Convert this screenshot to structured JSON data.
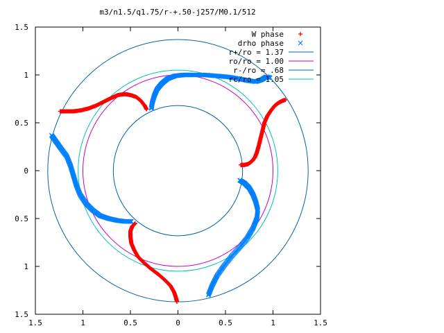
{
  "chart_data": {
    "type": "scatter",
    "title": "m3/n1.5/q1.75/r-+.50-j257/M0.1/512",
    "xlim": [
      -1.5,
      1.5
    ],
    "ylim": [
      -1.5,
      1.5
    ],
    "x_ticks": [
      {
        "value": -1.5,
        "label": "1.5"
      },
      {
        "value": -1.0,
        "label": "1"
      },
      {
        "value": -0.5,
        "label": "0.5"
      },
      {
        "value": 0.0,
        "label": "0"
      },
      {
        "value": 0.5,
        "label": "0.5"
      },
      {
        "value": 1.0,
        "label": "1"
      },
      {
        "value": 1.5,
        "label": "1.5"
      }
    ],
    "y_ticks": [
      {
        "value": 1.5,
        "label": "1.5"
      },
      {
        "value": 1.0,
        "label": "1"
      },
      {
        "value": 0.5,
        "label": "0.5"
      },
      {
        "value": 0.0,
        "label": "0"
      },
      {
        "value": -0.5,
        "label": "0.5"
      },
      {
        "value": -1.0,
        "label": "1"
      },
      {
        "value": -1.5,
        "label": "1.5"
      }
    ],
    "grid": false,
    "legend_position": "top-right",
    "series": [
      {
        "name": "W phase",
        "marker": "+",
        "color": "#ff0000",
        "arms": [
          [
            [
              0.66,
              0.06
            ],
            [
              0.7,
              0.06
            ],
            [
              0.74,
              0.07
            ],
            [
              0.78,
              0.1
            ],
            [
              0.81,
              0.14
            ],
            [
              0.83,
              0.19
            ],
            [
              0.85,
              0.26
            ],
            [
              0.87,
              0.34
            ],
            [
              0.89,
              0.42
            ],
            [
              0.91,
              0.5
            ],
            [
              0.94,
              0.57
            ],
            [
              0.98,
              0.63
            ],
            [
              1.02,
              0.68
            ],
            [
              1.06,
              0.71
            ],
            [
              1.1,
              0.73
            ],
            [
              1.13,
              0.74
            ]
          ],
          [
            [
              -0.33,
              0.64
            ],
            [
              -0.35,
              0.68
            ],
            [
              -0.39,
              0.73
            ],
            [
              -0.44,
              0.77
            ],
            [
              -0.5,
              0.79
            ],
            [
              -0.56,
              0.8
            ],
            [
              -0.63,
              0.79
            ],
            [
              -0.7,
              0.76
            ],
            [
              -0.78,
              0.72
            ],
            [
              -0.86,
              0.68
            ],
            [
              -0.94,
              0.65
            ],
            [
              -1.02,
              0.63
            ],
            [
              -1.1,
              0.62
            ],
            [
              -1.17,
              0.62
            ],
            [
              -1.24,
              0.62
            ]
          ],
          [
            [
              -0.45,
              -0.55
            ],
            [
              -0.48,
              -0.58
            ],
            [
              -0.5,
              -0.63
            ],
            [
              -0.5,
              -0.69
            ],
            [
              -0.49,
              -0.76
            ],
            [
              -0.46,
              -0.83
            ],
            [
              -0.42,
              -0.9
            ],
            [
              -0.36,
              -0.96
            ],
            [
              -0.29,
              -1.02
            ],
            [
              -0.21,
              -1.08
            ],
            [
              -0.14,
              -1.14
            ],
            [
              -0.08,
              -1.2
            ],
            [
              -0.04,
              -1.27
            ],
            [
              -0.02,
              -1.33
            ],
            [
              -0.01,
              -1.37
            ]
          ]
        ]
      },
      {
        "name": "drho phase",
        "marker": "x",
        "color": "#0080ff",
        "arms": [
          [
            [
              -0.28,
              0.65
            ],
            [
              -0.27,
              0.71
            ],
            [
              -0.25,
              0.78
            ],
            [
              -0.22,
              0.85
            ],
            [
              -0.17,
              0.91
            ],
            [
              -0.11,
              0.96
            ],
            [
              -0.03,
              0.99
            ],
            [
              0.06,
              1.0
            ],
            [
              0.16,
              1.0
            ],
            [
              0.28,
              1.0
            ],
            [
              0.4,
              0.99
            ],
            [
              0.52,
              0.98
            ],
            [
              0.64,
              0.96
            ],
            [
              0.74,
              0.94
            ],
            [
              0.82,
              0.93
            ],
            [
              0.88,
              0.95
            ],
            [
              0.93,
              0.98
            ],
            [
              0.97,
              0.97
            ]
          ],
          [
            [
              -1.33,
              0.37
            ],
            [
              -1.28,
              0.3
            ],
            [
              -1.23,
              0.23
            ],
            [
              -1.17,
              0.15
            ],
            [
              -1.13,
              0.05
            ],
            [
              -1.1,
              -0.05
            ],
            [
              -1.07,
              -0.15
            ],
            [
              -1.03,
              -0.25
            ],
            [
              -0.97,
              -0.34
            ],
            [
              -0.9,
              -0.41
            ],
            [
              -0.82,
              -0.47
            ],
            [
              -0.73,
              -0.5
            ],
            [
              -0.64,
              -0.52
            ],
            [
              -0.56,
              -0.53
            ],
            [
              -0.49,
              -0.53
            ]
          ],
          [
            [
              0.65,
              -0.1
            ],
            [
              0.7,
              -0.13
            ],
            [
              0.75,
              -0.18
            ],
            [
              0.79,
              -0.25
            ],
            [
              0.82,
              -0.33
            ],
            [
              0.84,
              -0.41
            ],
            [
              0.83,
              -0.5
            ],
            [
              0.79,
              -0.6
            ],
            [
              0.73,
              -0.7
            ],
            [
              0.65,
              -0.8
            ],
            [
              0.56,
              -0.9
            ],
            [
              0.48,
              -1.0
            ],
            [
              0.41,
              -1.1
            ],
            [
              0.36,
              -1.2
            ],
            [
              0.32,
              -1.3
            ]
          ]
        ]
      }
    ],
    "circles": [
      {
        "name": "r+/ro = 1.37",
        "radius": 1.37,
        "color": "#0060ad"
      },
      {
        "name": "ro/ro = 1.00",
        "radius": 1.0,
        "color": "#c000c0"
      },
      {
        "name": "r-/ro = .68",
        "radius": 0.68,
        "color": "#0060ad"
      },
      {
        "name": "rc/ro = 1.05",
        "radius": 1.05,
        "color": "#00c0c0"
      }
    ]
  }
}
